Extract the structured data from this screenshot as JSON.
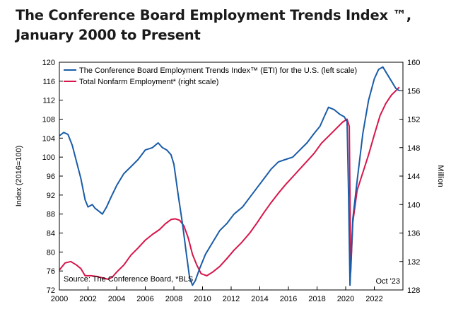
{
  "title_line1": "The Conference Board Employment Trends Index ™,",
  "title_line2": "January 2000 to Present",
  "colors": {
    "eti": "#1a5ca8",
    "nfp": "#d6164a",
    "axis": "#000000"
  },
  "chart_data": {
    "type": "line",
    "ylabel": "Index (2016=100)",
    "y2label": "Million",
    "ylim": [
      72,
      120
    ],
    "y2lim": [
      128,
      160
    ],
    "xlim": [
      2000.0,
      2024.0
    ],
    "yticks": [
      72,
      76,
      80,
      84,
      88,
      92,
      96,
      100,
      104,
      108,
      112,
      116,
      120
    ],
    "y2ticks": [
      128,
      132,
      136,
      140,
      144,
      148,
      152,
      156,
      160
    ],
    "xticks": [
      2000,
      2002,
      2004,
      2006,
      2008,
      2010,
      2012,
      2014,
      2016,
      2018,
      2020,
      2022
    ],
    "legend_position": "top-left",
    "source": "Source: The Conference Board, *BLS",
    "date_note": "Oct '23",
    "series": [
      {
        "name": "The Conference Board Employment Trends Index™ (ETI) for the U.S. (left scale)",
        "axis": "left",
        "x": [
          2000.0,
          2000.3,
          2000.6,
          2000.9,
          2001.2,
          2001.5,
          2001.8,
          2002.0,
          2002.3,
          2002.5,
          2002.8,
          2003.0,
          2003.3,
          2003.6,
          2004.0,
          2004.5,
          2005.0,
          2005.5,
          2006.0,
          2006.5,
          2006.9,
          2007.2,
          2007.5,
          2007.8,
          2008.0,
          2008.3,
          2008.6,
          2008.9,
          2009.1,
          2009.3,
          2009.5,
          2009.8,
          2010.2,
          2010.7,
          2011.2,
          2011.7,
          2012.2,
          2012.8,
          2013.3,
          2013.8,
          2014.3,
          2014.8,
          2015.3,
          2015.8,
          2016.3,
          2016.8,
          2017.3,
          2017.8,
          2018.2,
          2018.5,
          2018.8,
          2019.2,
          2019.6,
          2019.9,
          2020.1,
          2020.2,
          2020.3,
          2020.5,
          2020.8,
          2021.2,
          2021.6,
          2022.0,
          2022.3,
          2022.6,
          2022.9,
          2023.2,
          2023.5,
          2023.75
        ],
        "values": [
          104.5,
          105.2,
          104.8,
          102.5,
          99.0,
          95.5,
          91.0,
          89.5,
          90.0,
          89.2,
          88.5,
          88.0,
          89.5,
          91.5,
          94.0,
          96.5,
          98.0,
          99.5,
          101.5,
          102.0,
          103.0,
          102.0,
          101.5,
          100.5,
          98.5,
          92.0,
          86.0,
          79.0,
          74.5,
          73.0,
          74.0,
          76.5,
          79.5,
          82.0,
          84.5,
          86.0,
          88.0,
          89.5,
          91.5,
          93.5,
          95.5,
          97.5,
          99.0,
          99.5,
          100.0,
          101.5,
          103.0,
          105.0,
          106.5,
          108.5,
          110.5,
          110.0,
          109.0,
          108.5,
          107.5,
          92.0,
          73.0,
          87.0,
          95.0,
          105.0,
          112.0,
          116.5,
          118.5,
          119.0,
          117.5,
          116.0,
          114.5,
          114.0
        ]
      },
      {
        "name": "Total Nonfarm Employment* (right scale)",
        "axis": "right",
        "x": [
          2000.0,
          2000.4,
          2000.8,
          2001.2,
          2001.5,
          2001.8,
          2002.2,
          2002.6,
          2003.0,
          2003.4,
          2003.7,
          2004.0,
          2004.5,
          2005.0,
          2005.5,
          2006.0,
          2006.5,
          2007.0,
          2007.4,
          2007.8,
          2008.1,
          2008.4,
          2008.7,
          2009.0,
          2009.3,
          2009.6,
          2009.9,
          2010.3,
          2010.7,
          2011.2,
          2011.7,
          2012.2,
          2012.7,
          2013.3,
          2013.8,
          2014.3,
          2014.8,
          2015.3,
          2015.8,
          2016.3,
          2016.8,
          2017.3,
          2017.8,
          2018.3,
          2018.8,
          2019.3,
          2019.8,
          2020.1,
          2020.25,
          2020.35,
          2020.5,
          2020.8,
          2021.2,
          2021.6,
          2022.0,
          2022.4,
          2022.8,
          2023.2,
          2023.5,
          2023.75
        ],
        "values": [
          130.8,
          131.8,
          132.0,
          131.5,
          131.0,
          130.0,
          130.0,
          129.9,
          129.7,
          129.5,
          129.8,
          130.5,
          131.5,
          132.9,
          133.9,
          135.0,
          135.8,
          136.5,
          137.3,
          137.9,
          138.0,
          137.8,
          137.0,
          135.3,
          133.0,
          131.5,
          130.3,
          130.0,
          130.5,
          131.3,
          132.4,
          133.6,
          134.6,
          136.0,
          137.4,
          138.9,
          140.3,
          141.6,
          142.8,
          143.9,
          145.0,
          146.1,
          147.2,
          148.6,
          149.6,
          150.6,
          151.6,
          152.0,
          151.0,
          130.5,
          137.5,
          142.0,
          144.5,
          147.0,
          149.8,
          152.5,
          154.2,
          155.4,
          156.0,
          156.5
        ]
      }
    ]
  }
}
